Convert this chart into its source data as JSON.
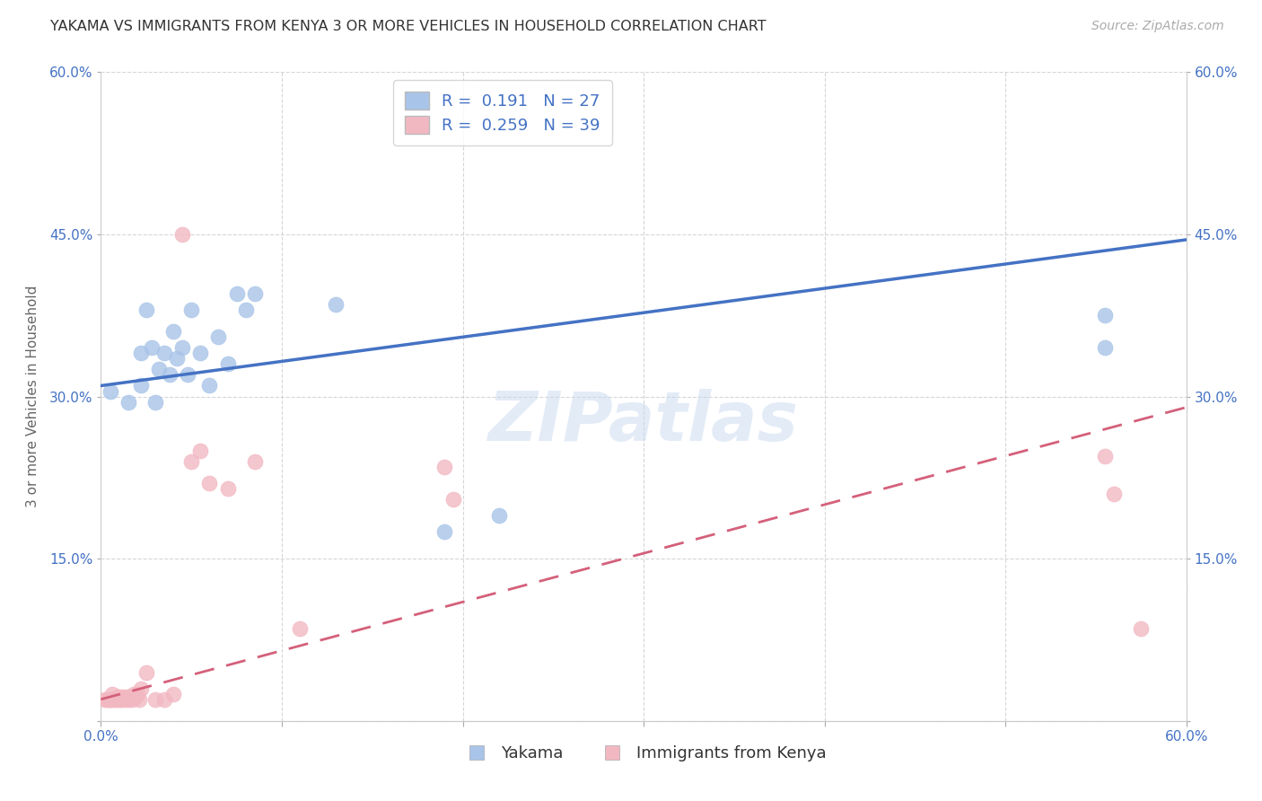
{
  "title": "YAKAMA VS IMMIGRANTS FROM KENYA 3 OR MORE VEHICLES IN HOUSEHOLD CORRELATION CHART",
  "source": "Source: ZipAtlas.com",
  "ylabel": "3 or more Vehicles in Household",
  "xmin": 0.0,
  "xmax": 0.6,
  "ymin": 0.0,
  "ymax": 0.6,
  "xticks": [
    0.0,
    0.1,
    0.2,
    0.3,
    0.4,
    0.5,
    0.6
  ],
  "yticks": [
    0.0,
    0.15,
    0.3,
    0.45,
    0.6
  ],
  "xtick_labels": [
    "0.0%",
    "",
    "",
    "",
    "",
    "",
    "60.0%"
  ],
  "ytick_labels": [
    "",
    "15.0%",
    "30.0%",
    "45.0%",
    "60.0%"
  ],
  "blue_R": "0.191",
  "blue_N": "27",
  "pink_R": "0.259",
  "pink_N": "39",
  "blue_color": "#a8c4e8",
  "pink_color": "#f2b8c2",
  "blue_line_color": "#4472c4",
  "pink_line_color": "#d4607a",
  "watermark_text": "ZIPatlas",
  "legend_labels": [
    "Yakama",
    "Immigrants from Kenya"
  ],
  "blue_scatter_x": [
    0.005,
    0.015,
    0.022,
    0.022,
    0.025,
    0.028,
    0.03,
    0.032,
    0.035,
    0.038,
    0.04,
    0.042,
    0.045,
    0.048,
    0.05,
    0.055,
    0.06,
    0.065,
    0.07,
    0.075,
    0.08,
    0.085,
    0.13,
    0.19,
    0.22,
    0.555,
    0.555
  ],
  "blue_scatter_y": [
    0.305,
    0.295,
    0.34,
    0.31,
    0.38,
    0.345,
    0.295,
    0.325,
    0.34,
    0.32,
    0.36,
    0.335,
    0.345,
    0.32,
    0.38,
    0.34,
    0.31,
    0.355,
    0.33,
    0.395,
    0.38,
    0.395,
    0.385,
    0.175,
    0.19,
    0.375,
    0.345
  ],
  "pink_scatter_x": [
    0.002,
    0.003,
    0.004,
    0.005,
    0.005,
    0.006,
    0.007,
    0.008,
    0.009,
    0.01,
    0.01,
    0.011,
    0.012,
    0.013,
    0.014,
    0.015,
    0.016,
    0.017,
    0.018,
    0.019,
    0.02,
    0.021,
    0.022,
    0.025,
    0.03,
    0.035,
    0.04,
    0.045,
    0.05,
    0.055,
    0.06,
    0.07,
    0.085,
    0.11,
    0.19,
    0.195,
    0.555,
    0.56,
    0.575
  ],
  "pink_scatter_y": [
    0.02,
    0.02,
    0.02,
    0.02,
    0.02,
    0.025,
    0.02,
    0.02,
    0.022,
    0.02,
    0.022,
    0.02,
    0.022,
    0.02,
    0.022,
    0.02,
    0.022,
    0.02,
    0.025,
    0.022,
    0.025,
    0.02,
    0.03,
    0.045,
    0.02,
    0.02,
    0.025,
    0.45,
    0.24,
    0.25,
    0.22,
    0.215,
    0.24,
    0.085,
    0.235,
    0.205,
    0.245,
    0.21,
    0.085
  ],
  "blue_trend_x0": 0.0,
  "blue_trend_x1": 0.6,
  "blue_trend_y0": 0.31,
  "blue_trend_y1": 0.445,
  "pink_trend_x0": 0.0,
  "pink_trend_x1": 0.6,
  "pink_trend_y0": 0.02,
  "pink_trend_y1": 0.29,
  "background_color": "#ffffff",
  "grid_color": "#cccccc"
}
